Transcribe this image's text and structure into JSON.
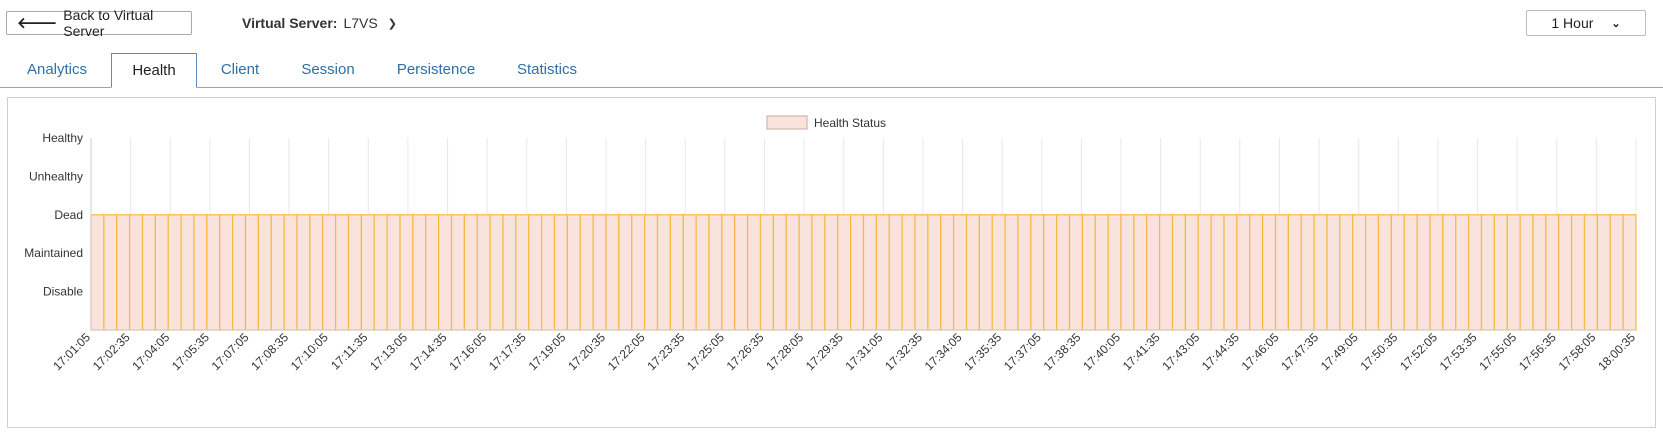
{
  "header": {
    "back_label": "Back to Virtual Server",
    "vs_label": "Virtual Server:",
    "vs_value": "L7VS",
    "time_range": "1 Hour"
  },
  "tabs": [
    {
      "label": "Analytics"
    },
    {
      "label": "Health"
    },
    {
      "label": "Client"
    },
    {
      "label": "Session"
    },
    {
      "label": "Persistence"
    },
    {
      "label": "Statistics"
    }
  ],
  "active_tab": "Health",
  "colors": {
    "accent": "#2f6fa6",
    "series_stroke": "#f5b942",
    "series_fill": "#fbe3dd",
    "grid": "#e8e8e8"
  },
  "chart_data": {
    "type": "bar",
    "legend": [
      "Health Status"
    ],
    "legend_position": "top-center",
    "y_categories": [
      "Healthy",
      "Unhealthy",
      "Dead",
      "Maintained",
      "Disable"
    ],
    "x_tick_labels": [
      "17:01:05",
      "17:02:35",
      "17:04:05",
      "17:05:35",
      "17:07:05",
      "17:08:35",
      "17:10:05",
      "17:11:35",
      "17:13:05",
      "17:14:35",
      "17:16:05",
      "17:17:35",
      "17:19:05",
      "17:20:35",
      "17:22:05",
      "17:23:35",
      "17:25:05",
      "17:26:35",
      "17:28:05",
      "17:29:35",
      "17:31:05",
      "17:32:35",
      "17:34:05",
      "17:35:35",
      "17:37:05",
      "17:38:35",
      "17:40:05",
      "17:41:35",
      "17:43:05",
      "17:44:35",
      "17:46:05",
      "17:47:35",
      "17:49:05",
      "17:50:35",
      "17:52:05",
      "17:53:35",
      "17:55:05",
      "17:56:35",
      "17:58:05",
      "18:00:35"
    ],
    "series": [
      {
        "name": "Health Status",
        "status": "Dead",
        "samples": 120,
        "interval_seconds": 30
      }
    ],
    "grid": true
  }
}
